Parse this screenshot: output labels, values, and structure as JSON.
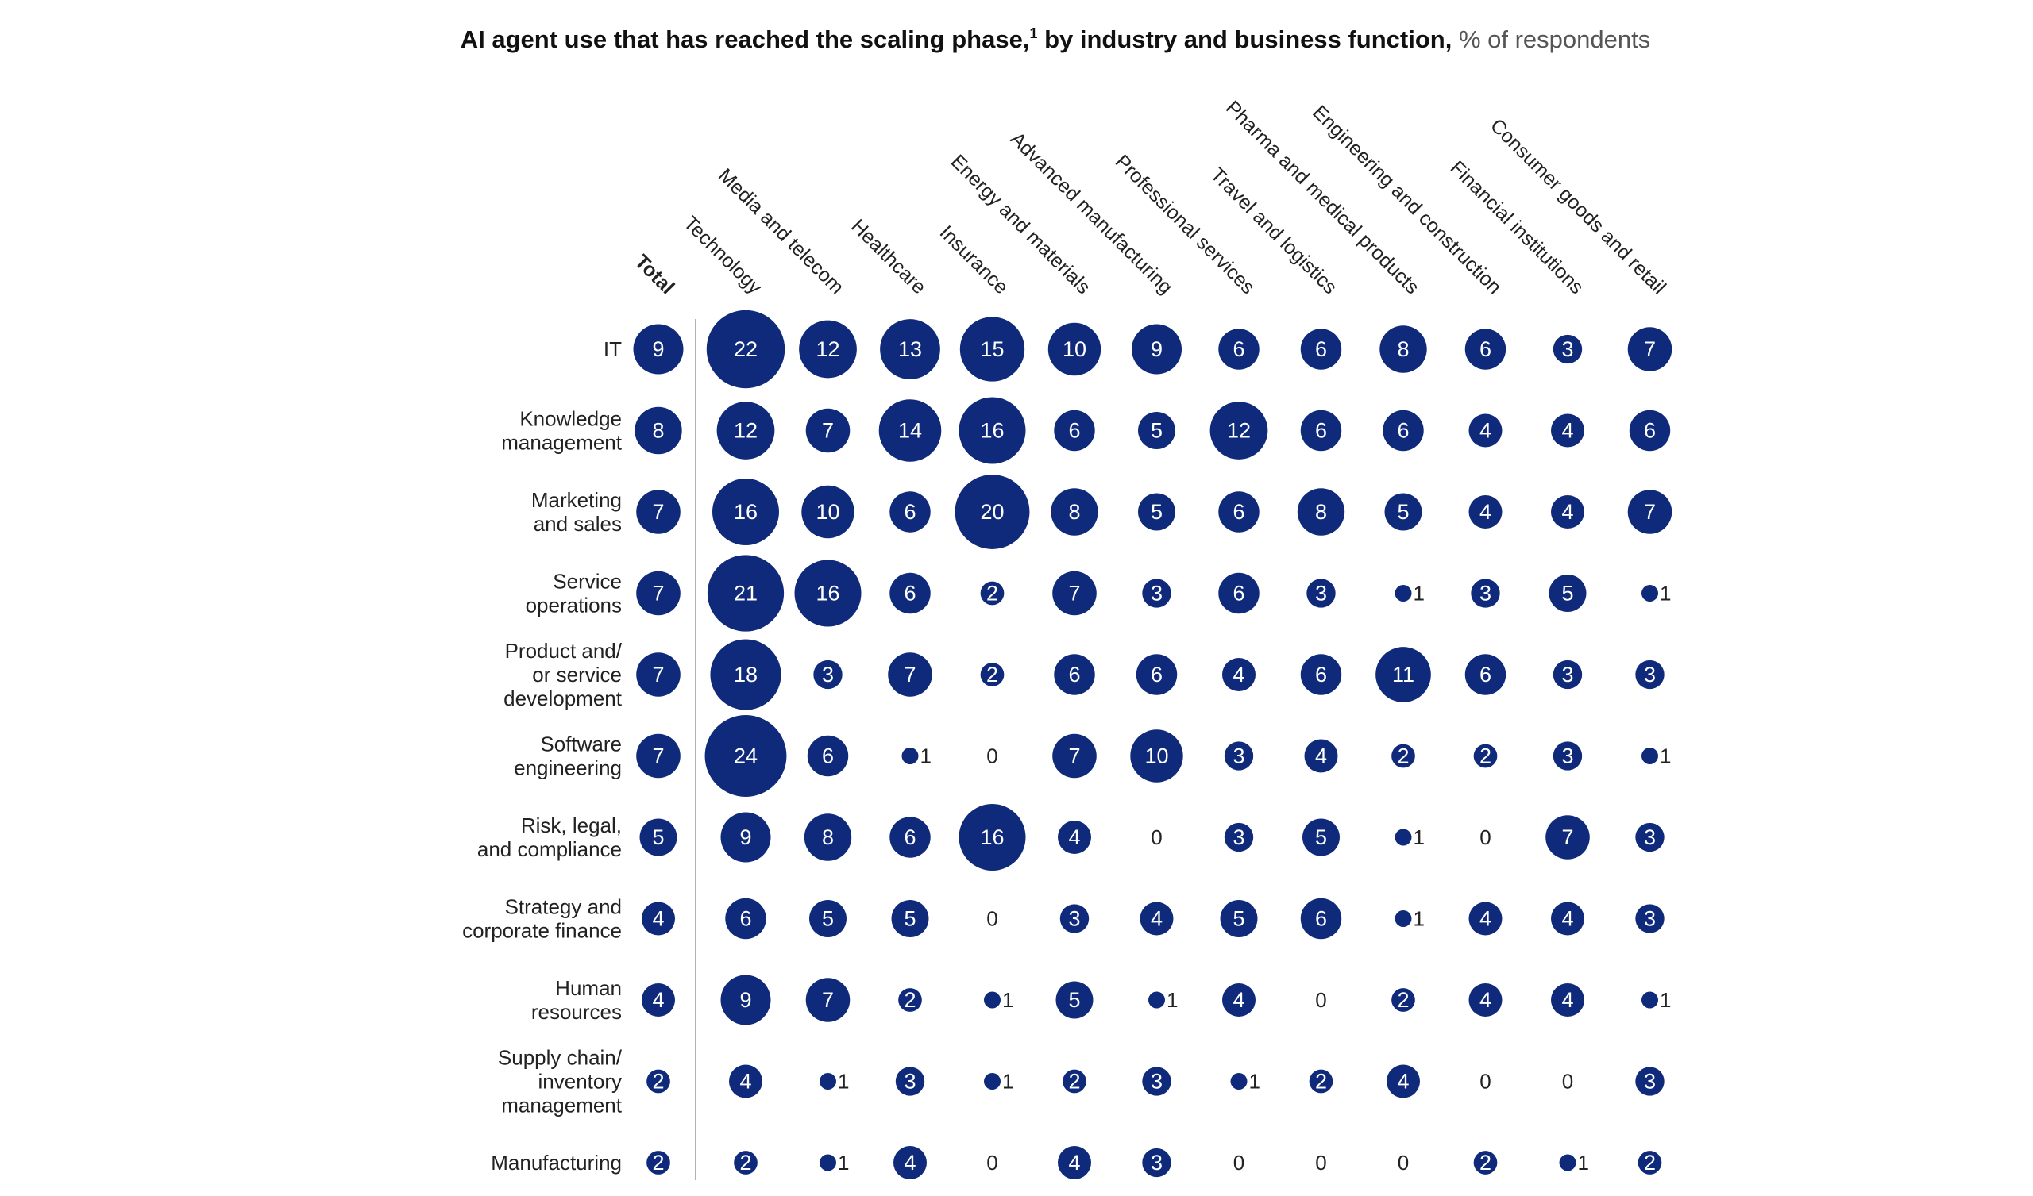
{
  "chart_data": {
    "type": "bubble-matrix",
    "title": {
      "bold": "AI agent use that has reached the scaling phase,",
      "footnote": "1",
      "bold2": " by industry and business function,",
      "unit": " % of respondents"
    },
    "columns": [
      "Total",
      "Technology",
      "Media and telecom",
      "Healthcare",
      "Insurance",
      "Energy and materials",
      "Advanced manufacturing",
      "Professional services",
      "Travel and logistics",
      "Pharma and medical products",
      "Engineering and construction",
      "Financial institutions",
      "Consumer goods and retail"
    ],
    "rows": [
      {
        "label": [
          "IT"
        ],
        "values": [
          9,
          22,
          12,
          13,
          15,
          10,
          9,
          6,
          6,
          8,
          6,
          3,
          7
        ]
      },
      {
        "label": [
          "Knowledge",
          "management"
        ],
        "values": [
          8,
          12,
          7,
          14,
          16,
          6,
          5,
          12,
          6,
          6,
          4,
          4,
          6
        ]
      },
      {
        "label": [
          "Marketing",
          "and sales"
        ],
        "values": [
          7,
          16,
          10,
          6,
          20,
          8,
          5,
          6,
          8,
          5,
          4,
          4,
          7
        ]
      },
      {
        "label": [
          "Service",
          "operations"
        ],
        "values": [
          7,
          21,
          16,
          6,
          2,
          7,
          3,
          6,
          3,
          1,
          3,
          5,
          1
        ]
      },
      {
        "label": [
          "Product and/",
          "or service",
          "development"
        ],
        "values": [
          7,
          18,
          3,
          7,
          2,
          6,
          6,
          4,
          6,
          11,
          6,
          3,
          3
        ]
      },
      {
        "label": [
          "Software",
          "engineering"
        ],
        "values": [
          7,
          24,
          6,
          1,
          0,
          7,
          10,
          3,
          4,
          2,
          2,
          3,
          1
        ]
      },
      {
        "label": [
          "Risk, legal,",
          "and compliance"
        ],
        "values": [
          5,
          9,
          8,
          6,
          16,
          4,
          0,
          3,
          5,
          1,
          0,
          7,
          3
        ]
      },
      {
        "label": [
          "Strategy and",
          "corporate finance"
        ],
        "values": [
          4,
          6,
          5,
          5,
          0,
          3,
          4,
          5,
          6,
          1,
          4,
          4,
          3
        ]
      },
      {
        "label": [
          "Human",
          "resources"
        ],
        "values": [
          4,
          9,
          7,
          2,
          1,
          5,
          1,
          4,
          0,
          2,
          4,
          4,
          1
        ]
      },
      {
        "label": [
          "Supply chain/",
          "inventory",
          "management"
        ],
        "values": [
          2,
          4,
          1,
          3,
          1,
          2,
          3,
          1,
          2,
          4,
          0,
          0,
          3
        ]
      },
      {
        "label": [
          "Manufacturing"
        ],
        "values": [
          2,
          2,
          1,
          4,
          0,
          4,
          3,
          0,
          0,
          0,
          2,
          1,
          2
        ]
      }
    ],
    "colors": {
      "bubble": "#0f2a7a",
      "text": "#222222"
    }
  }
}
